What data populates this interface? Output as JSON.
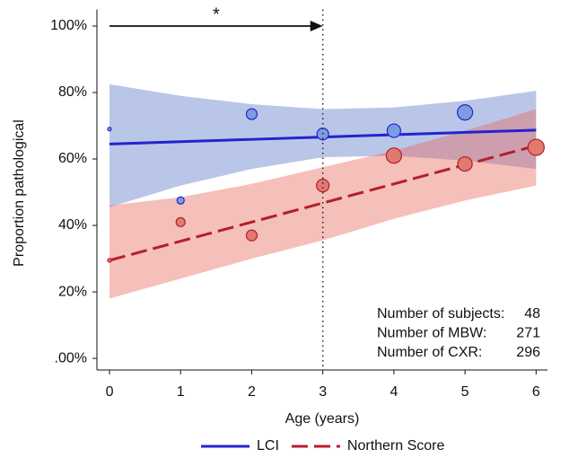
{
  "chart_data": {
    "type": "scatter",
    "x_label": "Age (years)",
    "y_label": "Proportion pathological",
    "x": [
      0,
      1,
      2,
      3,
      4,
      5,
      6
    ],
    "xlim": [
      -0.177,
      6.16
    ],
    "xticks": [
      0,
      1,
      2,
      3,
      4,
      5,
      6
    ],
    "ylim": [
      -3.5,
      105
    ],
    "yticks": [
      {
        "value": 0,
        "label": ".00%"
      },
      {
        "value": 20,
        "label": "20%"
      },
      {
        "value": 40,
        "label": "40%"
      },
      {
        "value": 60,
        "label": "60%"
      },
      {
        "value": 80,
        "label": "80%"
      },
      {
        "value": 100,
        "label": "100%"
      }
    ],
    "series": [
      {
        "name": "LCI",
        "color": "#2323cf",
        "point_fill": "#7d9be0",
        "band_color": "#5a78c8",
        "line_style": "solid",
        "values": [
          69,
          47.5,
          73.5,
          67.5,
          68.5,
          74,
          63.5
        ],
        "sizes": [
          2,
          4,
          6,
          6.5,
          7.5,
          8.5,
          8
        ],
        "fit": [
          64.5,
          65.2,
          65.9,
          66.6,
          67.3,
          68.0,
          68.7
        ],
        "upper": [
          82.5,
          79,
          76.5,
          75,
          75.5,
          77.5,
          80.5
        ],
        "lower": [
          45.5,
          52,
          57,
          60.5,
          61,
          59.5,
          57
        ]
      },
      {
        "name": "Northern Score",
        "color": "#b51e2a",
        "point_fill": "#e07a70",
        "band_color": "#e8665a",
        "line_style": "dashed",
        "values": [
          29.5,
          41,
          37,
          52,
          61,
          58.5,
          63.5
        ],
        "sizes": [
          2,
          5,
          6,
          7,
          8.5,
          8,
          9
        ],
        "fit": [
          29.5,
          35.25,
          41,
          46.75,
          52.5,
          58.25,
          64
        ],
        "upper": [
          46,
          48.5,
          52.5,
          57.5,
          62.5,
          68.5,
          75
        ],
        "lower": [
          18,
          24,
          30,
          35.5,
          42,
          47.5,
          52
        ]
      }
    ],
    "vline": 3,
    "arrow": {
      "from": 0,
      "to": 3,
      "y": 100,
      "label": "*"
    },
    "stats": [
      {
        "label": "Number of subjects:",
        "value": 48
      },
      {
        "label": "Number of MBW:",
        "value": 271
      },
      {
        "label": "Number of CXR:",
        "value": 296
      }
    ]
  }
}
